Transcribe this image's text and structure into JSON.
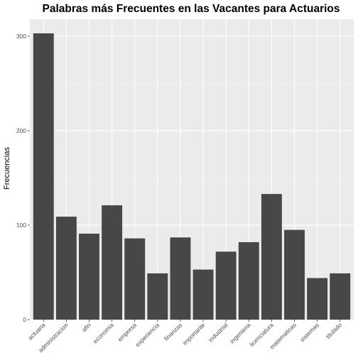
{
  "colors": {
    "panel": "#ebebeb",
    "grid_major": "#ffffff",
    "grid_minor": "#f5f5f5",
    "bar": "#474747",
    "tick_text": "#4d4d4d",
    "tick_mark": "#333333"
  },
  "chart_data": {
    "type": "bar",
    "title": "Palabras más Frecuentes en las Vacantes para Actuarios",
    "xlabel": "",
    "ylabel": "Frecuencias",
    "ylim": [
      0,
      318
    ],
    "yticks": [
      0,
      100,
      200,
      300
    ],
    "grid": true,
    "categories": [
      "actuaria",
      "administracion",
      "afin",
      "economia",
      "empresa",
      "experiencia",
      "finanzas",
      "importante",
      "industrial",
      "ingenieria",
      "licenciatura",
      "matematicas",
      "sistemas",
      "titulado"
    ],
    "values": [
      303,
      109,
      91,
      121,
      86,
      49,
      87,
      53,
      72,
      82,
      133,
      95,
      44,
      49
    ]
  }
}
